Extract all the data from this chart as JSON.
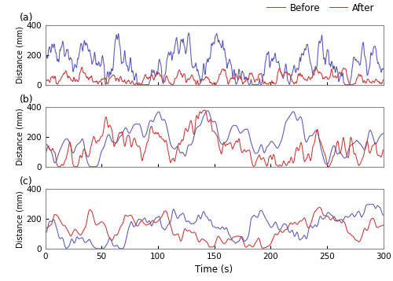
{
  "panels": [
    "(a)",
    "(b)",
    "(c)"
  ],
  "xlabel": "Time (s)",
  "ylabel": "Distance (mm)",
  "xlim": [
    0,
    300
  ],
  "ylim": [
    0,
    400
  ],
  "yticks": [
    0,
    200,
    400
  ],
  "xticks": [
    0,
    50,
    100,
    150,
    200,
    250,
    300
  ],
  "before_color": "#5555bb",
  "after_color": "#cc3333",
  "legend_labels": [
    "Before",
    "After"
  ],
  "linewidth": 0.75,
  "n_points": 3000
}
